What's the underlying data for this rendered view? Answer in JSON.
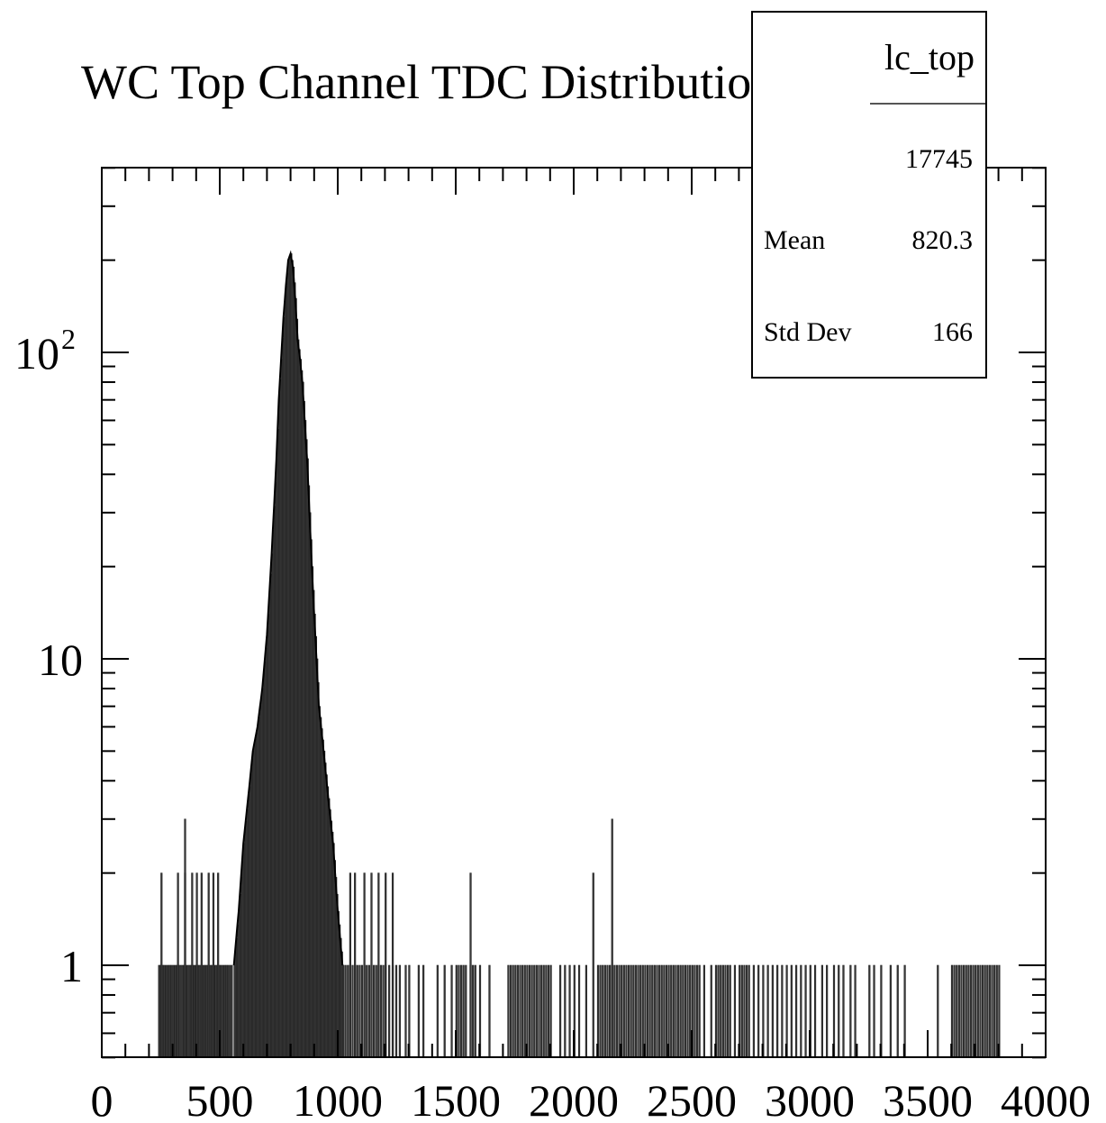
{
  "chart_data": {
    "type": "histogram",
    "title": "WC Top Channel TDC Distribution",
    "xlabel": "",
    "ylabel": "",
    "xlim": [
      0,
      4000
    ],
    "ylog": true,
    "ylim": [
      0.5,
      400
    ],
    "x_ticks": [
      "0",
      "500",
      "1000",
      "1500",
      "2000",
      "2500",
      "3000",
      "3500",
      "4000"
    ],
    "y_ticks": [
      {
        "value": 1,
        "label": "1"
      },
      {
        "value": 10,
        "label": "10"
      },
      {
        "value": 100,
        "label": "10",
        "exponent": "2"
      }
    ],
    "bin_width": 5,
    "core": {
      "x": [
        560,
        580,
        600,
        620,
        640,
        660,
        680,
        700,
        720,
        740,
        750,
        760,
        770,
        780,
        790,
        800,
        810,
        820,
        830,
        840,
        850,
        860,
        870,
        880,
        890,
        900,
        910,
        920,
        940,
        960,
        980,
        1000,
        1020
      ],
      "y": [
        1,
        1.5,
        2.5,
        3.5,
        5,
        6,
        8,
        12,
        22,
        45,
        70,
        95,
        130,
        165,
        200,
        210,
        190,
        150,
        110,
        95,
        80,
        60,
        45,
        30,
        20,
        14,
        10,
        7,
        5,
        3.5,
        2.5,
        1.5,
        1
      ]
    },
    "scattered_bins": {
      "ones": [
        240,
        245,
        255,
        262,
        270,
        278,
        285,
        292,
        300,
        308,
        315,
        322,
        330,
        338,
        345,
        352,
        360,
        368,
        375,
        382,
        390,
        398,
        405,
        412,
        420,
        428,
        435,
        442,
        450,
        458,
        465,
        472,
        480,
        488,
        495,
        502,
        510,
        518,
        525,
        532,
        540,
        548,
        1020,
        1030,
        1040,
        1050,
        1060,
        1070,
        1080,
        1090,
        1100,
        1110,
        1120,
        1130,
        1140,
        1150,
        1160,
        1170,
        1180,
        1190,
        1200,
        1215,
        1230,
        1245,
        1260,
        1285,
        1300,
        1340,
        1360,
        1420,
        1450,
        1480,
        1500,
        1510,
        1520,
        1530,
        1540,
        1560,
        1570,
        1580,
        1600,
        1640,
        1720,
        1730,
        1740,
        1750,
        1760,
        1770,
        1780,
        1790,
        1800,
        1810,
        1820,
        1830,
        1840,
        1850,
        1860,
        1870,
        1880,
        1890,
        1900,
        1940,
        1960,
        1980,
        2000,
        2020,
        2050,
        2100,
        2110,
        2120,
        2130,
        2140,
        2150,
        2160,
        2170,
        2180,
        2190,
        2200,
        2210,
        2220,
        2230,
        2240,
        2250,
        2260,
        2270,
        2280,
        2290,
        2300,
        2310,
        2320,
        2330,
        2340,
        2350,
        2360,
        2370,
        2380,
        2390,
        2400,
        2410,
        2420,
        2430,
        2440,
        2450,
        2460,
        2470,
        2480,
        2490,
        2500,
        2510,
        2520,
        2530,
        2550,
        2580,
        2600,
        2610,
        2620,
        2630,
        2640,
        2650,
        2660,
        2680,
        2700,
        2710,
        2720,
        2730,
        2740,
        2760,
        2780,
        2800,
        2820,
        2840,
        2860,
        2880,
        2900,
        2920,
        2940,
        2960,
        2980,
        3000,
        3020,
        3050,
        3070,
        3100,
        3120,
        3140,
        3170,
        3190,
        3250,
        3270,
        3300,
        3340,
        3370,
        3400,
        3540,
        3600,
        3610,
        3620,
        3630,
        3640,
        3650,
        3660,
        3670,
        3680,
        3690,
        3700,
        3710,
        3720,
        3730,
        3740,
        3750,
        3760,
        3770,
        3780,
        3790,
        3800
      ],
      "twos": [
        250,
        320,
        350,
        380,
        400,
        420,
        450,
        470,
        490,
        1050,
        1070,
        1110,
        1140,
        1170,
        1200,
        1230,
        1560,
        2080
      ],
      "threes": [
        350,
        2160
      ]
    }
  },
  "stats": {
    "name": "lc_top",
    "entries": "17745",
    "rows": [
      {
        "label": "Mean",
        "value": "820.3"
      },
      {
        "label": "Std Dev",
        "value": "166"
      }
    ]
  }
}
